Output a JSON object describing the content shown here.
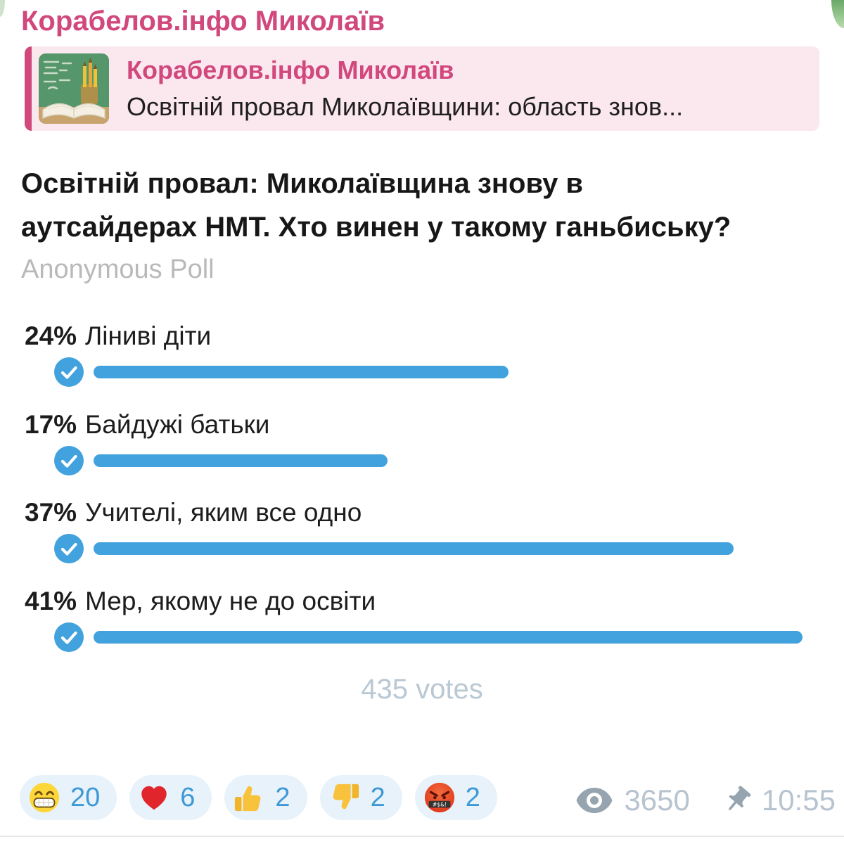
{
  "colors": {
    "channel_accent": "#d1487c",
    "reply_background": "#fbe7ee",
    "poll_bar_blue": "#42a2dd",
    "reaction_count_blue": "#3d99d6",
    "muted_gray": "#b9b9b9",
    "meta_gray": "#b7c4cf"
  },
  "header": {
    "channel_name": "Корабелов.інфо Миколаїв"
  },
  "reply": {
    "channel_name": "Корабелов.інфо Миколаїв",
    "snippet": "Освітній провал Миколаївщини: область знов...",
    "thumbnail": "chalkboard-book-pencils-photo"
  },
  "poll": {
    "question": "Освітній провал: Миколаївщина знову в аутсайдерах НМТ. Хто винен у такому ганьбиську?",
    "type_label": "Anonymous Poll",
    "max_percent": 41,
    "total_label": "435 votes",
    "options": [
      {
        "percent": "24%",
        "value": 24,
        "label": "Ліниві діти",
        "voted": true
      },
      {
        "percent": "17%",
        "value": 17,
        "label": "Байдужі батьки",
        "voted": true
      },
      {
        "percent": "37%",
        "value": 37,
        "label": "Учителі, яким все одно",
        "voted": true
      },
      {
        "percent": "41%",
        "value": 41,
        "label": "Мер, якому не до освіти",
        "voted": true
      }
    ]
  },
  "reactions": [
    {
      "icon": "beaming-face-icon",
      "count": "20"
    },
    {
      "icon": "red-heart-icon",
      "count": "6"
    },
    {
      "icon": "thumbs-up-icon",
      "count": "2"
    },
    {
      "icon": "thumbs-down-icon",
      "count": "2"
    },
    {
      "icon": "cursing-face-icon",
      "count": "2"
    }
  ],
  "meta": {
    "views": "3650",
    "views_icon": "eye-icon",
    "pinned": true,
    "pinned_icon": "pin-icon",
    "time": "10:55"
  }
}
